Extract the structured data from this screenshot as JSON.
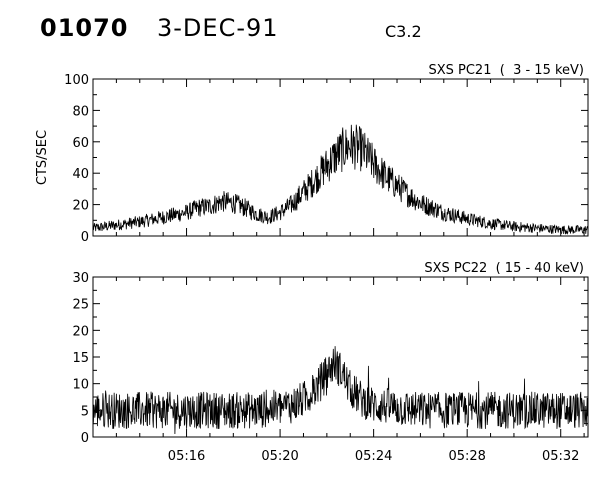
{
  "header": {
    "event_id": "01070",
    "date": "3-DEC-91",
    "flare_class": "C3.2"
  },
  "chart_data": [
    {
      "type": "line",
      "title": "SXS PC21  (  3 - 15 keV)",
      "ylabel": "CTS/SEC",
      "xlabel": "",
      "xlim": [
        "05:12:00",
        "05:33:10"
      ],
      "ylim": [
        0,
        100
      ],
      "yticks": [
        0,
        20,
        40,
        60,
        80,
        100
      ],
      "xticks": [
        "05:16",
        "05:20",
        "05:24",
        "05:28",
        "05:32"
      ],
      "show_x_tick_labels": false,
      "grid": false,
      "series": [
        {
          "x": [
            "05:12:00",
            "05:13:00",
            "05:14:00",
            "05:15:00",
            "05:16:00",
            "05:16:30",
            "05:17:00",
            "05:17:30",
            "05:18:00",
            "05:18:30",
            "05:19:00",
            "05:19:30",
            "05:20:00",
            "05:20:30",
            "05:21:00",
            "05:21:30",
            "05:22:00",
            "05:22:30",
            "05:23:00",
            "05:23:30",
            "05:24:00",
            "05:24:30",
            "05:25:00",
            "05:25:30",
            "05:26:00",
            "05:27:00",
            "05:28:00",
            "05:29:00",
            "05:30:00",
            "05:31:00",
            "05:32:00",
            "05:33:10"
          ],
          "values": [
            5,
            7,
            9,
            12,
            15,
            18,
            19,
            22,
            21,
            18,
            14,
            12,
            15,
            20,
            28,
            36,
            45,
            53,
            58,
            55,
            46,
            38,
            32,
            26,
            21,
            15,
            11,
            8,
            6,
            5,
            4,
            4
          ]
        }
      ]
    },
    {
      "type": "line",
      "title": "SXS PC22  ( 15 - 40 keV)",
      "ylabel": "",
      "xlabel": "",
      "xlim": [
        "05:12:00",
        "05:33:10"
      ],
      "ylim": [
        0,
        30
      ],
      "yticks": [
        0,
        5,
        10,
        15,
        20,
        25,
        30
      ],
      "xticks": [
        "05:16",
        "05:20",
        "05:24",
        "05:28",
        "05:32"
      ],
      "show_x_tick_labels": true,
      "grid": false,
      "series": [
        {
          "x": [
            "05:12:00",
            "05:14:00",
            "05:16:00",
            "05:18:00",
            "05:19:00",
            "05:20:00",
            "05:20:30",
            "05:21:00",
            "05:21:30",
            "05:22:00",
            "05:22:20",
            "05:22:40",
            "05:23:00",
            "05:23:30",
            "05:24:00",
            "05:25:00",
            "05:26:00",
            "05:28:00",
            "05:30:00",
            "05:32:00",
            "05:33:10"
          ],
          "values": [
            5,
            5,
            5,
            5,
            5,
            5.5,
            6,
            7,
            9,
            12,
            14,
            12,
            9,
            7,
            6,
            5.5,
            5,
            5,
            5,
            5,
            5
          ]
        }
      ]
    }
  ]
}
